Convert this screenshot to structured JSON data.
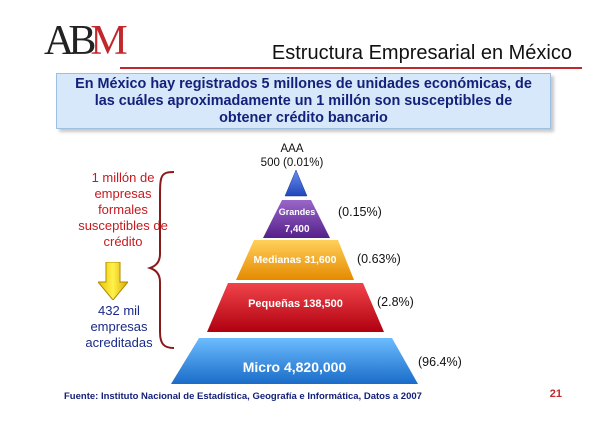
{
  "header": {
    "logo_text": "ABM",
    "title": "Estructura Empresarial en México"
  },
  "banner": {
    "text": "En México hay registrados 5 millones de unidades económicas, de las cuáles aproximadamente un 1 millón son susceptibles  de obtener crédito bancario"
  },
  "left_notes": {
    "upper": "1 millón de empresas formales susceptibles de crédito",
    "lower": "432 mil empresas acreditadas"
  },
  "pyramid": {
    "top_label": "AAA",
    "top_value": "500 (0.01%)",
    "tiers": [
      {
        "label": "Grandes",
        "value": "7,400",
        "pct": "(0.15%)",
        "color": "#6a2c9a",
        "share": 0.15
      },
      {
        "label": "Medianas 31,600",
        "pct": "(0.63%)",
        "color": "#f0a020",
        "share": 0.63
      },
      {
        "label": "Pequeñas 138,500",
        "pct": "(2.8%)",
        "color": "#d0141e",
        "share": 2.8
      },
      {
        "label": "Micro 4,820,000",
        "pct": "(96.4%)",
        "color": "#2a86d6",
        "share": 96.4
      }
    ],
    "apex_color": "#2f62c8"
  },
  "footer": {
    "source": "Fuente: Instituto Nacional de Estadística, Geografía e Informática, Datos a 2007",
    "page_number": "21"
  }
}
